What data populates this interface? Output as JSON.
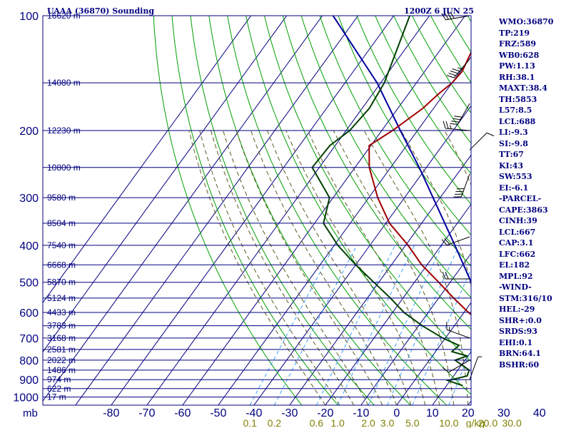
{
  "header": {
    "station_title": "UAAA (36870) Sounding",
    "valid_time": "1200Z  6 JUN 25"
  },
  "indices": [
    "WMO:36870",
    "TP:219",
    "FRZ:589",
    "WB0:628",
    "PW:1.13",
    "RH:38.1",
    "MAXT:38.4",
    "TH:5853",
    "L57:8.5",
    "LCL:688",
    "LI:-9.3",
    "SI:-9.8",
    "TT:67",
    "KI:43",
    "SW:553",
    "EI:-6.1",
    "-PARCEL-",
    "CAPE:3863",
    "CINH:39",
    "LCL:667",
    "CAP:3.1",
    "LFC:662",
    "EL:182",
    "MPL:92",
    "-WIND-",
    "STM:316/10",
    "HEL:-29",
    "SHR+:0.0",
    "SRDS:93",
    "EHI:0.1",
    "BRN:64.1",
    "BSHR:60"
  ],
  "colors": {
    "frame": "#000080",
    "temperature": "#a00000",
    "dewpoint": "#004000",
    "parcel": "#0000a0",
    "dry_adiabat": "#00a000",
    "moist_adiabat": "#5a5a20",
    "mixing_ratio": "#3ca0ff",
    "mixing_ratio_label": "#808000"
  },
  "chart_data": {
    "type": "skew-T log-P sounding",
    "title": "UAAA (36870) Sounding",
    "pressure_axis_label": "mb",
    "pressure_ticks": [
      100,
      200,
      300,
      400,
      500,
      600,
      700,
      800,
      900,
      1000
    ],
    "pressure_range": [
      1050,
      100
    ],
    "temperature_axis_unit": "C",
    "temperature_ticks": [
      -80,
      -70,
      -60,
      -50,
      -40,
      -30,
      -20,
      -10,
      0,
      10,
      20,
      30,
      40
    ],
    "temperature_tick_labels": [
      "-80",
      "-70",
      "-60",
      "-50",
      "-40",
      "-30",
      "-20",
      "-10",
      "0",
      "10",
      "20",
      "30",
      "40"
    ],
    "mixing_ratio_labels": [
      "0.1",
      "0.2",
      "0.6",
      "1.0",
      "2.0",
      "3.0",
      "5.0",
      "10.0",
      "20.0",
      "30.0"
    ],
    "mixing_ratio_unit": "g/kg",
    "mixing_ratio_values": [
      0.1,
      0.2,
      0.6,
      1.0,
      2.0,
      3.0,
      5.0,
      10.0,
      20.0,
      30.0
    ],
    "height_labels": [
      {
        "p": 100,
        "text": "16620 m"
      },
      {
        "p": 150,
        "text": "14080 m"
      },
      {
        "p": 200,
        "text": "12230 m"
      },
      {
        "p": 250,
        "text": "10800 m"
      },
      {
        "p": 300,
        "text": "9580 m"
      },
      {
        "p": 350,
        "text": "8504 m"
      },
      {
        "p": 400,
        "text": "7540 m"
      },
      {
        "p": 450,
        "text": "6668 m"
      },
      {
        "p": 500,
        "text": "5870 m"
      },
      {
        "p": 550,
        "text": "5124 m"
      },
      {
        "p": 600,
        "text": "4433 m"
      },
      {
        "p": 650,
        "text": "3783 m"
      },
      {
        "p": 700,
        "text": "3168 m"
      },
      {
        "p": 750,
        "text": "2581 m"
      },
      {
        "p": 800,
        "text": "2022 m"
      },
      {
        "p": 850,
        "text": "1486 m"
      },
      {
        "p": 900,
        "text": "974 m"
      },
      {
        "p": 950,
        "text": "622 m"
      },
      {
        "p": 1000,
        "text": "17 m"
      }
    ],
    "temperature_profile": [
      [
        933,
        38.4
      ],
      [
        900,
        35.4
      ],
      [
        893,
        32.0
      ],
      [
        873,
        34.8
      ],
      [
        850,
        31.0
      ],
      [
        800,
        23.2
      ],
      [
        790,
        19.8
      ],
      [
        777,
        22.5
      ],
      [
        700,
        14.0
      ],
      [
        650,
        8.5
      ],
      [
        600,
        1.3
      ],
      [
        550,
        -5.8
      ],
      [
        500,
        -13.2
      ],
      [
        450,
        -21.5
      ],
      [
        400,
        -29.3
      ],
      [
        350,
        -39.0
      ],
      [
        300,
        -47.5
      ],
      [
        250,
        -56.0
      ],
      [
        219,
        -60.5
      ],
      [
        200,
        -57.0
      ],
      [
        175,
        -53.0
      ],
      [
        160,
        -51.5
      ],
      [
        150,
        -50.0
      ],
      [
        140,
        -49.5
      ],
      [
        100,
        -53.5
      ]
    ],
    "dewpoint_profile": [
      [
        933,
        14.5
      ],
      [
        905,
        9.4
      ],
      [
        880,
        13.8
      ],
      [
        850,
        13.2
      ],
      [
        800,
        7.2
      ],
      [
        780,
        9.7
      ],
      [
        760,
        4.6
      ],
      [
        732,
        5.3
      ],
      [
        700,
        -0.8
      ],
      [
        650,
        -9.0
      ],
      [
        600,
        -16.8
      ],
      [
        550,
        -23.5
      ],
      [
        500,
        -31.4
      ],
      [
        450,
        -40.0
      ],
      [
        400,
        -49.0
      ],
      [
        350,
        -57.5
      ],
      [
        300,
        -61.0
      ],
      [
        250,
        -72.0
      ],
      [
        219,
        -71.5
      ],
      [
        200,
        -69.0
      ],
      [
        175,
        -68.0
      ],
      [
        150,
        -69.0
      ],
      [
        100,
        -75.5
      ]
    ],
    "parcel_profile": [
      [
        933,
        38.4
      ],
      [
        850,
        28.5
      ],
      [
        700,
        14.5
      ],
      [
        667,
        11.6
      ],
      [
        600,
        5.8
      ],
      [
        500,
        -4.1
      ],
      [
        400,
        -16.2
      ],
      [
        300,
        -32.0
      ],
      [
        250,
        -42.0
      ],
      [
        200,
        -54.8
      ],
      [
        150,
        -71.0
      ],
      [
        100,
        -97.0
      ]
    ],
    "wind_barbs": [
      {
        "p": 100,
        "dir": 260,
        "spd_kt": 40
      },
      {
        "p": 130,
        "dir": 220,
        "spd_kt": 45
      },
      {
        "p": 170,
        "dir": 210,
        "spd_kt": 40
      },
      {
        "p": 200,
        "dir": 275,
        "spd_kt": 25
      },
      {
        "p": 225,
        "dir": 45,
        "spd_kt": 10
      },
      {
        "p": 260,
        "dir": 200,
        "spd_kt": 40
      },
      {
        "p": 380,
        "dir": 250,
        "spd_kt": 20
      },
      {
        "p": 490,
        "dir": 270,
        "spd_kt": 20
      },
      {
        "p": 700,
        "dir": 290,
        "spd_kt": 15
      },
      {
        "p": 800,
        "dir": 240,
        "spd_kt": 10
      },
      {
        "p": 900,
        "dir": 20,
        "spd_kt": 5
      }
    ]
  }
}
